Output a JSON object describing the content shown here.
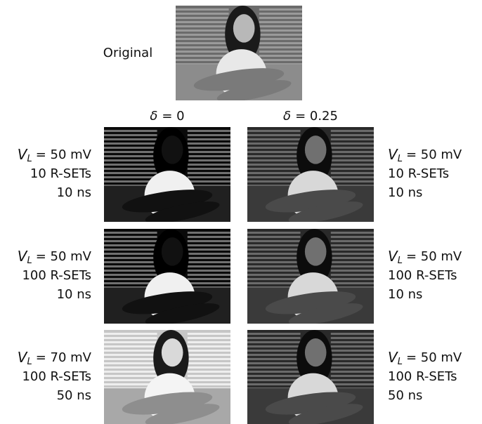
{
  "original": {
    "label": "Original"
  },
  "columns": [
    {
      "symbol": "δ",
      "value": "= 0"
    },
    {
      "symbol": "δ",
      "value": "= 0.25"
    }
  ],
  "rows": [
    {
      "left": {
        "var": "V",
        "sub": "L",
        "voltage": "= 50 mV",
        "resets": "10 R-SETs",
        "time": "10 ns"
      },
      "right": {
        "var": "V",
        "sub": "L",
        "voltage": "= 50 mV",
        "resets": "10 R-SETs",
        "time": "10 ns"
      }
    },
    {
      "left": {
        "var": "V",
        "sub": "L",
        "voltage": "= 50 mV",
        "resets": "100 R-SETs",
        "time": "10 ns"
      },
      "right": {
        "var": "V",
        "sub": "L",
        "voltage": "= 50 mV",
        "resets": "100 R-SETs",
        "time": "10 ns"
      }
    },
    {
      "left": {
        "var": "V",
        "sub": "L",
        "voltage": "= 70 mV",
        "resets": "100 R-SETs",
        "time": "50 ns"
      },
      "right": {
        "var": "V",
        "sub": "L",
        "voltage": "= 50 mV",
        "resets": "100 R-SETs",
        "time": "50 ns"
      }
    }
  ]
}
